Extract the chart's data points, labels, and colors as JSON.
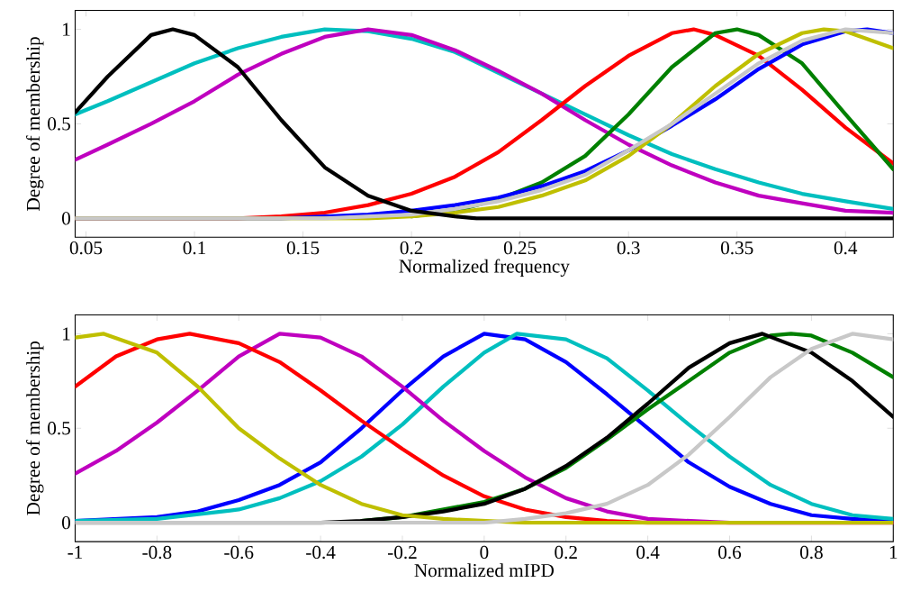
{
  "chart_data": [
    {
      "type": "line",
      "xlabel": "Normalized frequency",
      "ylabel": "Degree of membership",
      "xlim": [
        0.045,
        0.422
      ],
      "ylim": [
        -0.1,
        1.1
      ],
      "xticks": [
        0.05,
        0.1,
        0.15,
        0.2,
        0.25,
        0.3,
        0.35,
        0.4
      ],
      "yticks": [
        0,
        0.5,
        1
      ],
      "line_style": "solid",
      "series": [
        {
          "color": "#00bfbf",
          "x": [
            0.045,
            0.06,
            0.08,
            0.1,
            0.12,
            0.14,
            0.16,
            0.18,
            0.2,
            0.22,
            0.24,
            0.26,
            0.28,
            0.3,
            0.32,
            0.34,
            0.36,
            0.38,
            0.4,
            0.422
          ],
          "values": [
            0.55,
            0.62,
            0.72,
            0.82,
            0.9,
            0.96,
            1.0,
            0.99,
            0.95,
            0.88,
            0.77,
            0.66,
            0.55,
            0.44,
            0.34,
            0.26,
            0.19,
            0.13,
            0.09,
            0.05
          ]
        },
        {
          "color": "#bf00bf",
          "x": [
            0.045,
            0.06,
            0.08,
            0.1,
            0.12,
            0.14,
            0.16,
            0.18,
            0.2,
            0.22,
            0.24,
            0.26,
            0.28,
            0.3,
            0.32,
            0.34,
            0.36,
            0.38,
            0.4,
            0.422
          ],
          "values": [
            0.31,
            0.39,
            0.5,
            0.62,
            0.76,
            0.87,
            0.96,
            1.0,
            0.97,
            0.89,
            0.78,
            0.66,
            0.52,
            0.39,
            0.28,
            0.19,
            0.12,
            0.08,
            0.04,
            0.03
          ]
        },
        {
          "color": "#ff0000",
          "x": [
            0.045,
            0.12,
            0.14,
            0.16,
            0.18,
            0.2,
            0.22,
            0.24,
            0.26,
            0.28,
            0.3,
            0.32,
            0.33,
            0.34,
            0.36,
            0.38,
            0.4,
            0.422
          ],
          "values": [
            0,
            0,
            0.01,
            0.03,
            0.07,
            0.13,
            0.22,
            0.35,
            0.52,
            0.7,
            0.86,
            0.98,
            1.0,
            0.97,
            0.86,
            0.68,
            0.48,
            0.29
          ]
        },
        {
          "color": "#008000",
          "x": [
            0.2,
            0.22,
            0.24,
            0.26,
            0.28,
            0.3,
            0.32,
            0.34,
            0.35,
            0.36,
            0.38,
            0.4,
            0.422
          ],
          "values": [
            0.01,
            0.04,
            0.1,
            0.19,
            0.33,
            0.55,
            0.8,
            0.98,
            1.0,
            0.97,
            0.82,
            0.55,
            0.26
          ]
        },
        {
          "color": "#0000ff",
          "x": [
            0.045,
            0.14,
            0.16,
            0.18,
            0.2,
            0.22,
            0.24,
            0.26,
            0.28,
            0.3,
            0.32,
            0.34,
            0.36,
            0.38,
            0.4,
            0.41,
            0.422
          ],
          "values": [
            0,
            0,
            0.01,
            0.02,
            0.04,
            0.07,
            0.11,
            0.17,
            0.25,
            0.36,
            0.49,
            0.63,
            0.79,
            0.92,
            0.99,
            1.0,
            0.98
          ]
        },
        {
          "color": "#bfbf00",
          "x": [
            0.045,
            0.18,
            0.2,
            0.22,
            0.24,
            0.26,
            0.28,
            0.3,
            0.32,
            0.34,
            0.36,
            0.38,
            0.39,
            0.4,
            0.422
          ],
          "values": [
            0,
            0,
            0.01,
            0.03,
            0.06,
            0.12,
            0.2,
            0.33,
            0.5,
            0.7,
            0.87,
            0.98,
            1.0,
            0.99,
            0.9
          ]
        },
        {
          "color": "#c8c8c8",
          "x": [
            0.045,
            0.16,
            0.18,
            0.2,
            0.22,
            0.24,
            0.26,
            0.28,
            0.3,
            0.32,
            0.34,
            0.36,
            0.38,
            0.4,
            0.422
          ],
          "values": [
            0,
            0,
            0.01,
            0.02,
            0.05,
            0.09,
            0.15,
            0.23,
            0.36,
            0.5,
            0.66,
            0.82,
            0.94,
            1.0,
            0.98
          ]
        },
        {
          "color": "#000000",
          "x": [
            0.045,
            0.06,
            0.08,
            0.09,
            0.1,
            0.12,
            0.14,
            0.16,
            0.18,
            0.2,
            0.22,
            0.23,
            0.422
          ],
          "values": [
            0.56,
            0.75,
            0.97,
            1.0,
            0.97,
            0.8,
            0.52,
            0.27,
            0.12,
            0.04,
            0.01,
            0,
            0
          ]
        }
      ]
    },
    {
      "type": "line",
      "xlabel": "Normalized mIPD",
      "ylabel": "Degree of membership",
      "xlim": [
        -1,
        1
      ],
      "ylim": [
        -0.1,
        1.1
      ],
      "xticks": [
        -1,
        -0.8,
        -0.6,
        -0.4,
        -0.2,
        0,
        0.2,
        0.4,
        0.6,
        0.8,
        1
      ],
      "yticks": [
        0,
        0.5,
        1
      ],
      "line_style": "solid",
      "series": [
        {
          "color": "#0000ff",
          "x": [
            -1,
            -0.8,
            -0.7,
            -0.6,
            -0.5,
            -0.4,
            -0.3,
            -0.2,
            -0.1,
            0,
            0.1,
            0.2,
            0.3,
            0.4,
            0.5,
            0.6,
            0.7,
            0.8,
            0.9,
            1
          ],
          "values": [
            0.01,
            0.03,
            0.06,
            0.12,
            0.2,
            0.32,
            0.5,
            0.7,
            0.88,
            1.0,
            0.97,
            0.85,
            0.68,
            0.5,
            0.32,
            0.19,
            0.1,
            0.04,
            0.02,
            0.01
          ]
        },
        {
          "color": "#00bfbf",
          "x": [
            -1,
            -0.8,
            -0.6,
            -0.5,
            -0.4,
            -0.3,
            -0.2,
            -0.1,
            0,
            0.08,
            0.2,
            0.3,
            0.4,
            0.5,
            0.6,
            0.7,
            0.8,
            0.9,
            1
          ],
          "values": [
            0.01,
            0.02,
            0.07,
            0.13,
            0.22,
            0.35,
            0.52,
            0.72,
            0.9,
            1.0,
            0.97,
            0.87,
            0.7,
            0.52,
            0.35,
            0.2,
            0.1,
            0.04,
            0.02
          ]
        },
        {
          "color": "#bf00bf",
          "x": [
            -1,
            -0.9,
            -0.8,
            -0.7,
            -0.6,
            -0.5,
            -0.4,
            -0.3,
            -0.2,
            -0.1,
            0,
            0.1,
            0.2,
            0.3,
            0.4,
            0.5,
            0.6,
            1
          ],
          "values": [
            0.26,
            0.38,
            0.53,
            0.7,
            0.88,
            1.0,
            0.98,
            0.88,
            0.72,
            0.54,
            0.38,
            0.24,
            0.13,
            0.06,
            0.02,
            0.01,
            0,
            0
          ]
        },
        {
          "color": "#ff0000",
          "x": [
            -1,
            -0.9,
            -0.8,
            -0.72,
            -0.6,
            -0.5,
            -0.4,
            -0.3,
            -0.2,
            -0.1,
            0,
            0.1,
            0.2,
            0.3,
            0.4,
            1
          ],
          "values": [
            0.72,
            0.88,
            0.97,
            1.0,
            0.95,
            0.85,
            0.7,
            0.54,
            0.39,
            0.25,
            0.14,
            0.07,
            0.03,
            0.01,
            0,
            0
          ]
        },
        {
          "color": "#008000",
          "x": [
            -0.3,
            -0.2,
            -0.1,
            0,
            0.1,
            0.2,
            0.3,
            0.4,
            0.5,
            0.6,
            0.7,
            0.75,
            0.8,
            0.9,
            1
          ],
          "values": [
            0.01,
            0.03,
            0.07,
            0.11,
            0.18,
            0.29,
            0.44,
            0.6,
            0.75,
            0.9,
            0.99,
            1.0,
            0.99,
            0.9,
            0.77
          ]
        },
        {
          "color": "#000000",
          "x": [
            -1,
            -0.4,
            -0.3,
            -0.2,
            -0.1,
            0,
            0.1,
            0.2,
            0.3,
            0.4,
            0.5,
            0.6,
            0.68,
            0.8,
            0.9,
            1
          ],
          "values": [
            0,
            0,
            0.01,
            0.03,
            0.06,
            0.1,
            0.18,
            0.3,
            0.45,
            0.63,
            0.82,
            0.95,
            1.0,
            0.9,
            0.75,
            0.56
          ]
        },
        {
          "color": "#bfbf00",
          "x": [
            -1,
            -0.93,
            -0.8,
            -0.7,
            -0.6,
            -0.5,
            -0.4,
            -0.3,
            -0.2,
            -0.1,
            0,
            0.1,
            1
          ],
          "values": [
            0.98,
            1.0,
            0.9,
            0.72,
            0.5,
            0.34,
            0.2,
            0.1,
            0.04,
            0.02,
            0.01,
            0,
            0
          ]
        },
        {
          "color": "#c8c8c8",
          "x": [
            -1,
            0,
            0.1,
            0.2,
            0.3,
            0.4,
            0.5,
            0.6,
            0.7,
            0.8,
            0.9,
            1
          ],
          "values": [
            0,
            0,
            0.02,
            0.05,
            0.1,
            0.2,
            0.36,
            0.56,
            0.77,
            0.92,
            1.0,
            0.97
          ]
        }
      ]
    }
  ]
}
